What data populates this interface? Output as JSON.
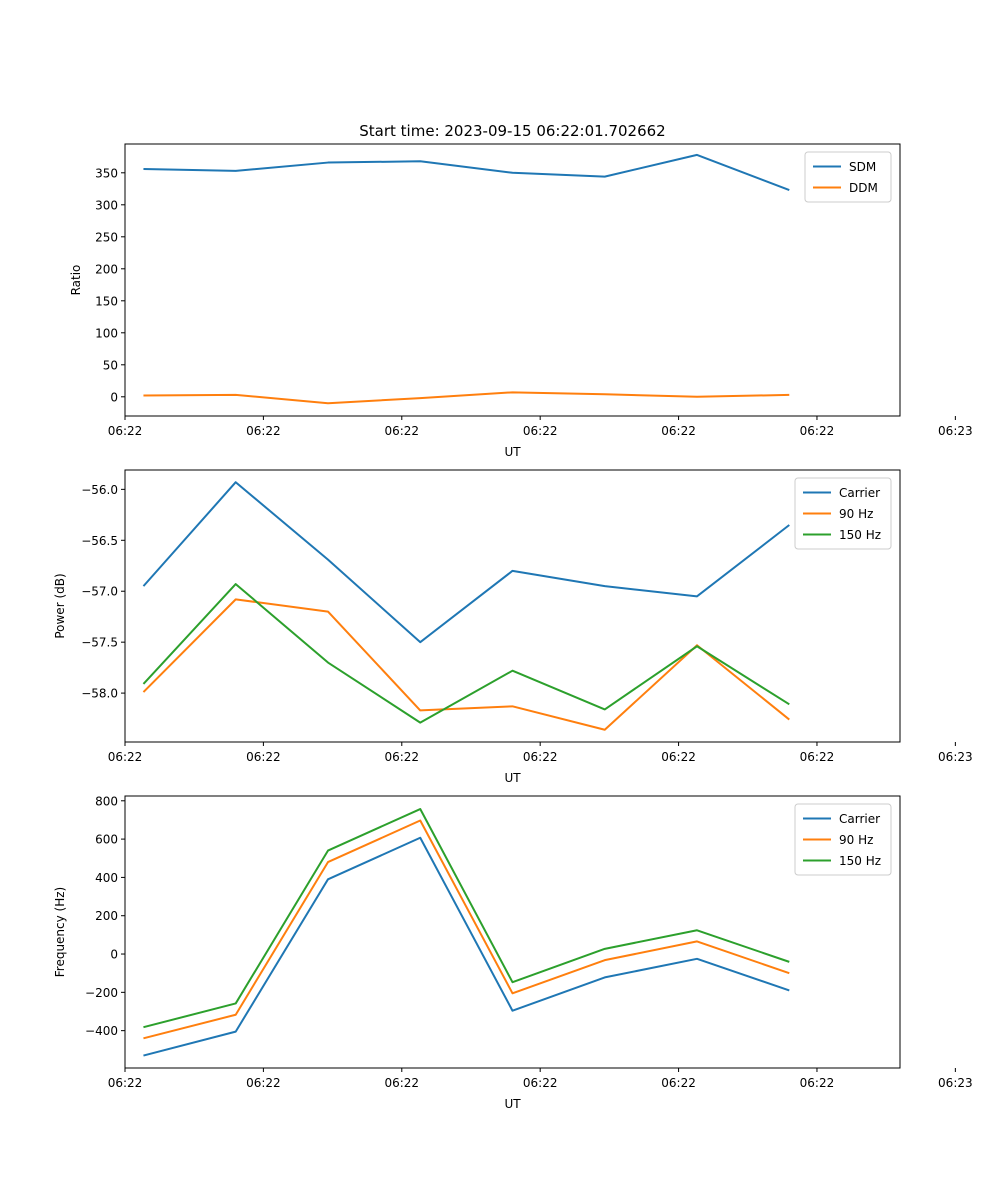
{
  "figure": {
    "title": "Start time: 2023-09-15 06:22:01.702662"
  },
  "chart_data": [
    {
      "type": "line",
      "xlabel": "UT",
      "ylabel": "Ratio",
      "x": [
        1,
        2,
        3,
        4,
        5,
        6,
        7,
        8
      ],
      "xlim": [
        0.8,
        9.2
      ],
      "xticks": [
        0.8,
        2.3,
        3.8,
        5.3,
        6.8,
        8.3,
        9.8
      ],
      "xtick_labels": [
        "06:22",
        "06:22",
        "06:22",
        "06:22",
        "06:22",
        "06:22",
        "06:23"
      ],
      "ylim": [
        -30,
        395
      ],
      "yticks": [
        0,
        50,
        100,
        150,
        200,
        250,
        300,
        350
      ],
      "ytick_labels": [
        "0",
        "50",
        "100",
        "150",
        "200",
        "250",
        "300",
        "350"
      ],
      "legend": "top-right",
      "series": [
        {
          "name": "SDM",
          "color": "#1f77b4",
          "values": [
            356,
            353,
            366,
            368,
            350,
            344,
            378,
            323
          ]
        },
        {
          "name": "DDM",
          "color": "#ff7f0e",
          "values": [
            2,
            3,
            -10,
            -2,
            7,
            4,
            0,
            3
          ]
        }
      ]
    },
    {
      "type": "line",
      "xlabel": "UT",
      "ylabel": "Power (dB)",
      "x": [
        1,
        2,
        3,
        4,
        5,
        6,
        7,
        8
      ],
      "xlim": [
        0.8,
        9.2
      ],
      "xticks": [
        0.8,
        2.3,
        3.8,
        5.3,
        6.8,
        8.3,
        9.8
      ],
      "xtick_labels": [
        "06:22",
        "06:22",
        "06:22",
        "06:22",
        "06:22",
        "06:22",
        "06:23"
      ],
      "ylim": [
        -58.48,
        -55.81
      ],
      "yticks": [
        -58.0,
        -57.5,
        -57.0,
        -56.5,
        -56.0
      ],
      "ytick_labels": [
        "−58.0",
        "−57.5",
        "−57.0",
        "−56.5",
        "−56.0"
      ],
      "legend": "top-right",
      "series": [
        {
          "name": "Carrier",
          "color": "#1f77b4",
          "values": [
            -56.95,
            -55.93,
            -56.69,
            -57.5,
            -56.8,
            -56.95,
            -57.05,
            -56.35
          ]
        },
        {
          "name": "90 Hz",
          "color": "#ff7f0e",
          "values": [
            -57.99,
            -57.08,
            -57.2,
            -58.17,
            -58.13,
            -58.36,
            -57.53,
            -58.26
          ]
        },
        {
          "name": "150 Hz",
          "color": "#2ca02c",
          "values": [
            -57.91,
            -56.93,
            -57.7,
            -58.29,
            -57.78,
            -58.16,
            -57.54,
            -58.11
          ]
        }
      ]
    },
    {
      "type": "line",
      "xlabel": "UT",
      "ylabel": "Frequency (Hz)",
      "x": [
        1,
        2,
        3,
        4,
        5,
        6,
        7,
        8
      ],
      "xlim": [
        0.8,
        9.2
      ],
      "xticks": [
        0.8,
        2.3,
        3.8,
        5.3,
        6.8,
        8.3,
        9.8
      ],
      "xtick_labels": [
        "06:22",
        "06:22",
        "06:22",
        "06:22",
        "06:22",
        "06:22",
        "06:23"
      ],
      "ylim": [
        -595,
        825
      ],
      "yticks": [
        -400,
        -200,
        0,
        200,
        400,
        600,
        800
      ],
      "ytick_labels": [
        "−400",
        "−200",
        "0",
        "200",
        "400",
        "600",
        "800"
      ],
      "legend": "top-right",
      "series": [
        {
          "name": "Carrier",
          "color": "#1f77b4",
          "values": [
            -530,
            -405,
            390,
            607,
            -296,
            -122,
            -25,
            -190
          ]
        },
        {
          "name": "90 Hz",
          "color": "#ff7f0e",
          "values": [
            -440,
            -317,
            480,
            697,
            -205,
            -32,
            66,
            -100
          ]
        },
        {
          "name": "150 Hz",
          "color": "#2ca02c",
          "values": [
            -382,
            -258,
            540,
            757,
            -147,
            27,
            124,
            -41
          ]
        }
      ]
    }
  ]
}
